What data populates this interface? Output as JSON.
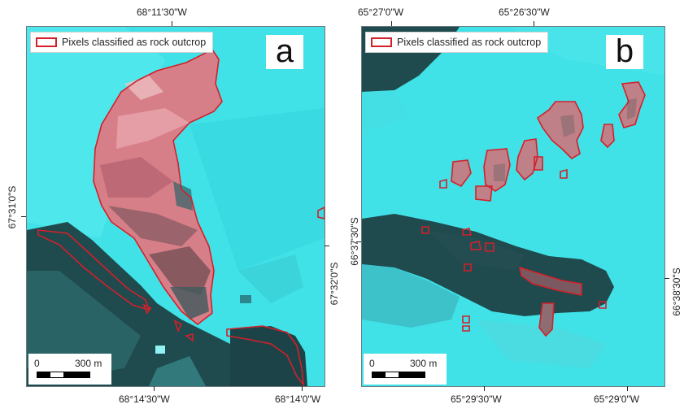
{
  "panels": [
    {
      "letter": "a",
      "legend_label": "Pixels classified as rock outcrop",
      "legend_color": "#d3202a",
      "scalebar": {
        "zero": "0",
        "max": "300 m"
      },
      "coords": {
        "top": "68°11'30\"W",
        "bottom_1": "68°14'30\"W",
        "bottom_2": "68°14'0\"W",
        "left": "67°31'0\"S",
        "right": "67°32'0\"S"
      }
    },
    {
      "letter": "b",
      "legend_label": "Pixels classified as rock outcrop",
      "legend_color": "#d3202a",
      "scalebar": {
        "zero": "0",
        "max": "300 m"
      },
      "coords": {
        "top_1": "65°27'0\"W",
        "top_2": "65°26'30\"W",
        "bottom_1": "65°29'30\"W",
        "bottom_2": "65°29'0\"W",
        "left": "66°37'30\"S",
        "right": "66°38'30\"S"
      }
    }
  ],
  "colors": {
    "ice": "#3fe0e6",
    "water": "#1f4c50",
    "rock": "#d98a92",
    "outline": "#d3202a"
  }
}
